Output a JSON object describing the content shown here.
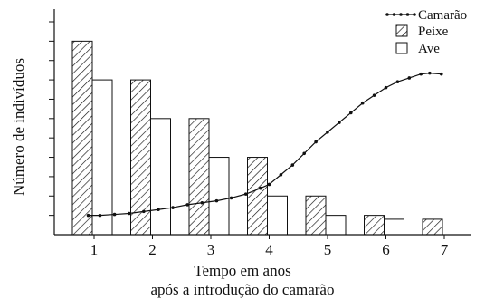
{
  "chart_data": {
    "type": "bar",
    "title": "",
    "xlabel": "Tempo em anos",
    "xlabel_line2": "após a introdução do camarão",
    "ylabel": "Número de indivíduos",
    "categories": [
      "1",
      "2",
      "3",
      "4",
      "5",
      "6",
      "7"
    ],
    "ylim": [
      0,
      11
    ],
    "y_ticks_count": 11,
    "y_ticks_labeled": false,
    "grid": false,
    "legend_position": "top-right",
    "series": [
      {
        "name": "Peixe",
        "kind": "bar",
        "pattern": "hatched",
        "values": [
          10,
          8,
          6,
          4,
          2,
          1,
          0.8
        ]
      },
      {
        "name": "Ave",
        "kind": "bar",
        "pattern": "white",
        "values": [
          8,
          6,
          4,
          2,
          1,
          0.8,
          null
        ]
      },
      {
        "name": "Camarão",
        "kind": "line",
        "marker": "dot",
        "x": [
          0.9,
          1.1,
          1.35,
          1.6,
          1.85,
          2.1,
          2.35,
          2.6,
          2.85,
          3.1,
          3.35,
          3.6,
          3.85,
          4.0,
          4.2,
          4.4,
          4.6,
          4.8,
          5.0,
          5.2,
          5.4,
          5.6,
          5.8,
          6.0,
          6.2,
          6.4,
          6.6,
          6.75,
          6.95
        ],
        "y": [
          1.0,
          1.0,
          1.05,
          1.1,
          1.2,
          1.3,
          1.4,
          1.55,
          1.65,
          1.75,
          1.9,
          2.1,
          2.4,
          2.6,
          3.1,
          3.6,
          4.2,
          4.8,
          5.3,
          5.8,
          6.3,
          6.8,
          7.2,
          7.6,
          7.9,
          8.1,
          8.3,
          8.35,
          8.3
        ]
      }
    ]
  }
}
